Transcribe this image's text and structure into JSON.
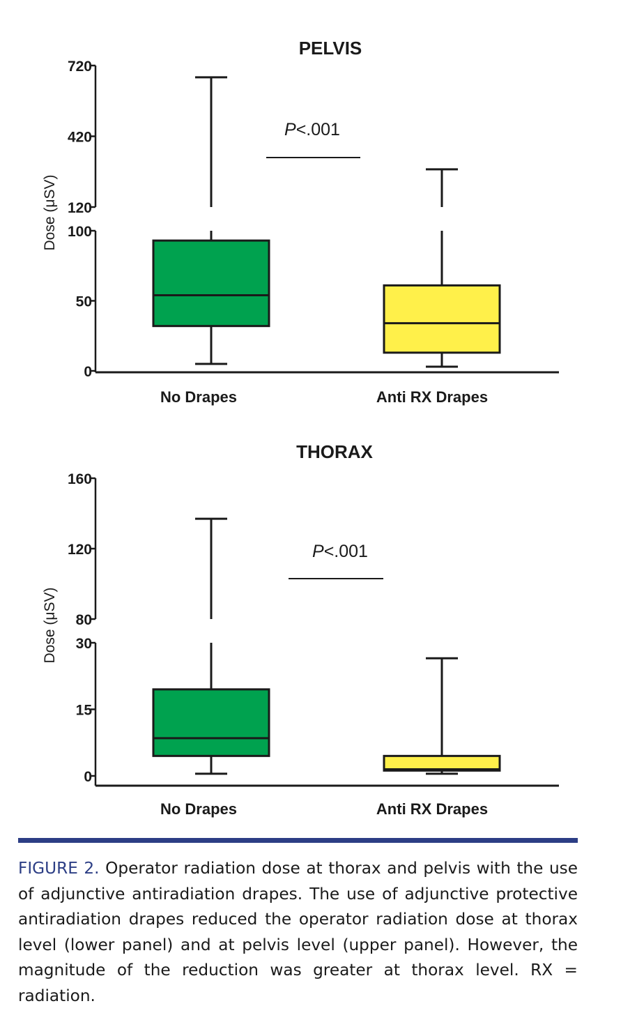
{
  "chart_data": [
    {
      "type": "box",
      "title": "PELVIS",
      "ylabel": "Dose (μSV)",
      "categories": [
        "No Drapes",
        "Anti RX Drapes"
      ],
      "y_ticks_lower": [
        "0",
        "50",
        "100"
      ],
      "y_ticks_upper": [
        "120",
        "420",
        "720"
      ],
      "ylim_lower": [
        0,
        100
      ],
      "ylim_upper": [
        120,
        720
      ],
      "axis_break": [
        100,
        120
      ],
      "annotation": "P<.001",
      "boxes": [
        {
          "category": "No Drapes",
          "min": 5,
          "q1": 32,
          "median": 54,
          "q3": 93,
          "max": 670,
          "color": "#00a24f"
        },
        {
          "category": "Anti RX Drapes",
          "min": 3,
          "q1": 13,
          "median": 34,
          "q3": 61,
          "max": 280,
          "color": "#fff04a"
        }
      ]
    },
    {
      "type": "box",
      "title": "THORAX",
      "ylabel": "Dose (μSV)",
      "categories": [
        "No Drapes",
        "Anti RX Drapes"
      ],
      "y_ticks_lower": [
        "0",
        "15",
        "30"
      ],
      "y_ticks_upper": [
        "80",
        "120",
        "160"
      ],
      "ylim_lower": [
        0,
        30
      ],
      "ylim_upper": [
        80,
        160
      ],
      "axis_break": [
        30,
        80
      ],
      "annotation": "P<.001",
      "boxes": [
        {
          "category": "No Drapes",
          "min": 0.5,
          "q1": 4.5,
          "median": 8.5,
          "q3": 19.5,
          "max": 137,
          "color": "#00a24f"
        },
        {
          "category": "Anti RX Drapes",
          "min": 0.5,
          "q1": 1.2,
          "median": 1.5,
          "q3": 4.5,
          "max": 26.5,
          "color": "#fff04a"
        }
      ]
    }
  ],
  "caption": {
    "lead": "FIGURE 2.",
    "text": " Operator radiation dose at thorax and pelvis with the use of adjunctive antiradiation drapes. The use of adjunctive protective antiradiation drapes reduced the operator radiation dose at thorax level (lower panel) and at pelvis level (upper panel). However, the magnitude of the reduction was greater at thorax level. RX = radiation."
  },
  "colors": {
    "no_drapes": "#00a24f",
    "anti_rx": "#fff04a",
    "accent": "#2c3e85"
  }
}
